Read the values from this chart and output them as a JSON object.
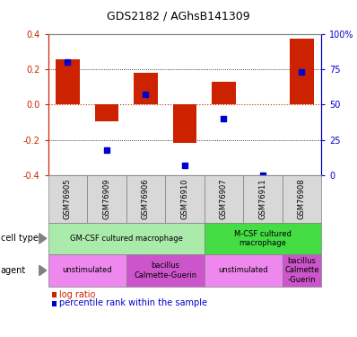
{
  "title": "GDS2182 / AGhsB141309",
  "samples": [
    "GSM76905",
    "GSM76909",
    "GSM76906",
    "GSM76910",
    "GSM76907",
    "GSM76911",
    "GSM76908"
  ],
  "log_ratio": [
    0.255,
    -0.095,
    0.18,
    -0.215,
    0.13,
    0.0,
    0.37
  ],
  "pct_rank": [
    80,
    18,
    57,
    7,
    40,
    0,
    73
  ],
  "bar_color": "#cc2200",
  "pct_color": "#0000cc",
  "ylim": [
    -0.4,
    0.4
  ],
  "yticks_left": [
    -0.4,
    -0.2,
    0.0,
    0.2,
    0.4
  ],
  "yticks_right": [
    0,
    25,
    50,
    75,
    100
  ],
  "ytick_labels_right": [
    "0",
    "25",
    "50",
    "75",
    "100%"
  ],
  "cell_type_labels": [
    {
      "label": "GM-CSF cultured macrophage",
      "span": [
        0,
        4
      ],
      "color": "#aaeaaa"
    },
    {
      "label": "M-CSF cultured\nmacrophage",
      "span": [
        4,
        7
      ],
      "color": "#44dd44"
    }
  ],
  "agent_labels": [
    {
      "label": "unstimulated",
      "span": [
        0,
        2
      ],
      "color": "#ee88ee"
    },
    {
      "label": "bacillus\nCalmette-Guerin",
      "span": [
        2,
        4
      ],
      "color": "#cc55cc"
    },
    {
      "label": "unstimulated",
      "span": [
        4,
        6
      ],
      "color": "#ee88ee"
    },
    {
      "label": "bacillus\nCalmette\n-Guerin",
      "span": [
        6,
        7
      ],
      "color": "#cc55cc"
    }
  ]
}
